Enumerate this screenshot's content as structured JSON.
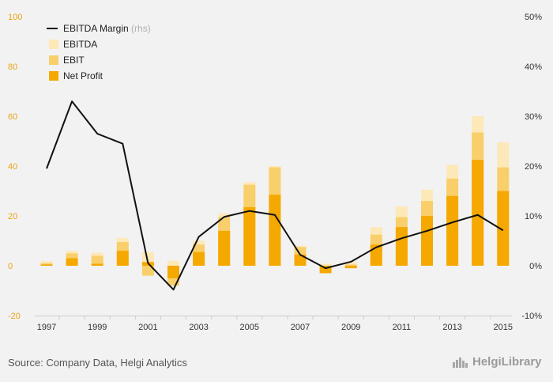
{
  "chart_data": {
    "type": "bar",
    "categories": [
      "1997",
      "1998",
      "1999",
      "2000",
      "2001",
      "2002",
      "2003",
      "2004",
      "2005",
      "2006",
      "2007",
      "2008",
      "2009",
      "2010",
      "2011",
      "2012",
      "2013",
      "2014",
      "2015"
    ],
    "x_tick_labels": [
      "1997",
      "1999",
      "2001",
      "2003",
      "2005",
      "2007",
      "2009",
      "2011",
      "2013",
      "2015"
    ],
    "series": [
      {
        "name": "EBITDA",
        "type": "bar",
        "color": "#fde8b8",
        "values": [
          1.8,
          6.0,
          5.2,
          11.2,
          5.5,
          2.0,
          10.0,
          21.0,
          33.5,
          40.0,
          8.0,
          0.8,
          1.5,
          15.5,
          23.8,
          30.5,
          40.5,
          60.0,
          49.5
        ]
      },
      {
        "name": "EBIT",
        "type": "bar",
        "color": "#f9cf6b",
        "values": [
          1.0,
          5.0,
          4.0,
          9.5,
          -4.0,
          -8.0,
          8.5,
          19.5,
          32.5,
          39.5,
          7.5,
          -0.5,
          0.5,
          12.5,
          19.5,
          26.0,
          35.0,
          53.5,
          39.5
        ]
      },
      {
        "name": "Net Profit",
        "type": "bar",
        "color": "#f5a800",
        "values": [
          0.5,
          3.0,
          0.8,
          6.0,
          1.5,
          -5.0,
          5.5,
          14.0,
          23.5,
          28.5,
          4.5,
          -3.0,
          -1.0,
          8.5,
          15.5,
          20.0,
          28.0,
          42.5,
          30.0
        ]
      },
      {
        "name": "EBITDA Margin",
        "name_suffix": "(rhs)",
        "type": "line",
        "color": "#111111",
        "values": [
          19.5,
          33.0,
          26.5,
          24.5,
          0.5,
          -4.8,
          5.8,
          9.8,
          11.0,
          10.2,
          2.2,
          -0.5,
          0.8,
          3.7,
          5.5,
          7.0,
          8.7,
          10.2,
          7.1
        ]
      }
    ],
    "y_left": {
      "min": -20,
      "max": 100,
      "ticks": [
        -20,
        0,
        20,
        40,
        60,
        80,
        100
      ],
      "color": "#e8a317"
    },
    "y_right": {
      "min": -10,
      "max": 50,
      "ticks": [
        "-10%",
        "0%",
        "10%",
        "20%",
        "30%",
        "40%",
        "50%"
      ]
    },
    "legend": "top-left",
    "title": "",
    "xlabel": "",
    "ylabel": ""
  },
  "footer": {
    "source": "Source: Company Data, Helgi Analytics",
    "brand": "HelgiLibrary",
    "brand_icon": "helgi-logo-icon"
  }
}
